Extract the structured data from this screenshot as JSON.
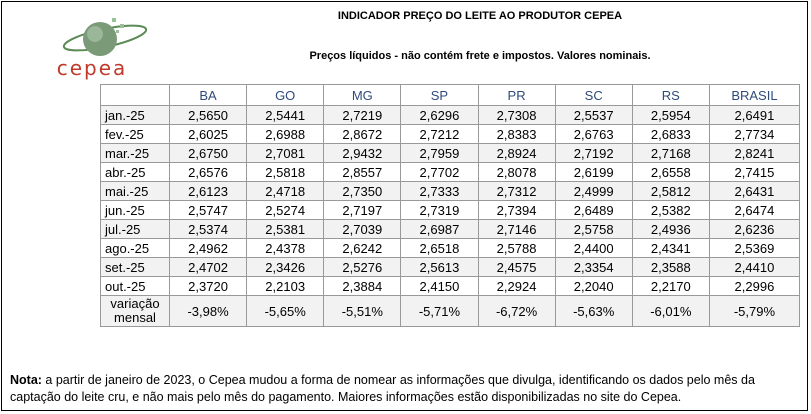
{
  "header": {
    "title": "INDICADOR PREÇO DO LEITE AO PRODUTOR CEPEA",
    "subtitle": "Preços líquidos - não contém frete e impostos. Valores nominais.",
    "logo_text": "cepea"
  },
  "table": {
    "columns": [
      "BA",
      "GO",
      "MG",
      "SP",
      "PR",
      "SC",
      "RS",
      "BRASIL"
    ],
    "rows": [
      [
        "jan.-25",
        "2,5650",
        "2,5441",
        "2,7219",
        "2,6296",
        "2,7308",
        "2,5537",
        "2,5954",
        "2,6491"
      ],
      [
        "fev.-25",
        "2,6025",
        "2,6988",
        "2,8672",
        "2,7212",
        "2,8383",
        "2,6763",
        "2,6833",
        "2,7734"
      ],
      [
        "mar.-25",
        "2,6750",
        "2,7081",
        "2,9432",
        "2,7959",
        "2,8924",
        "2,7192",
        "2,7168",
        "2,8241"
      ],
      [
        "abr.-25",
        "2,6576",
        "2,5818",
        "2,8557",
        "2,7702",
        "2,8078",
        "2,6199",
        "2,6558",
        "2,7415"
      ],
      [
        "mai.-25",
        "2,6123",
        "2,4718",
        "2,7350",
        "2,7333",
        "2,7312",
        "2,4999",
        "2,5812",
        "2,6431"
      ],
      [
        "jun.-25",
        "2,5747",
        "2,5274",
        "2,7197",
        "2,7319",
        "2,7394",
        "2,6489",
        "2,5382",
        "2,6474"
      ],
      [
        "jul.-25",
        "2,5374",
        "2,5381",
        "2,7039",
        "2,6987",
        "2,7146",
        "2,5758",
        "2,4936",
        "2,6236"
      ],
      [
        "ago.-25",
        "2,4962",
        "2,4378",
        "2,6242",
        "2,6518",
        "2,5788",
        "2,4400",
        "2,4341",
        "2,5369"
      ],
      [
        "set.-25",
        "2,4702",
        "2,3426",
        "2,5276",
        "2,5613",
        "2,4575",
        "2,3354",
        "2,3588",
        "2,4410"
      ],
      [
        "out.-25",
        "2,3720",
        "2,2103",
        "2,3884",
        "2,4150",
        "2,2924",
        "2,2040",
        "2,2170",
        "2,2996"
      ],
      [
        "variação mensal",
        "-3,98%",
        "-5,65%",
        "-5,51%",
        "-5,71%",
        "-6,72%",
        "-5,63%",
        "-6,01%",
        "-5,79%"
      ]
    ]
  },
  "note": {
    "label": "Nota:",
    "text": " a partir de janeiro de 2023, o Cepea mudou a forma de nomear as informações que divulga, identificando os dados pelo mês da captação do leite cru, e não mais pelo mês do pagamento. Maiores informações estão disponibilizadas no site do Cepea."
  }
}
